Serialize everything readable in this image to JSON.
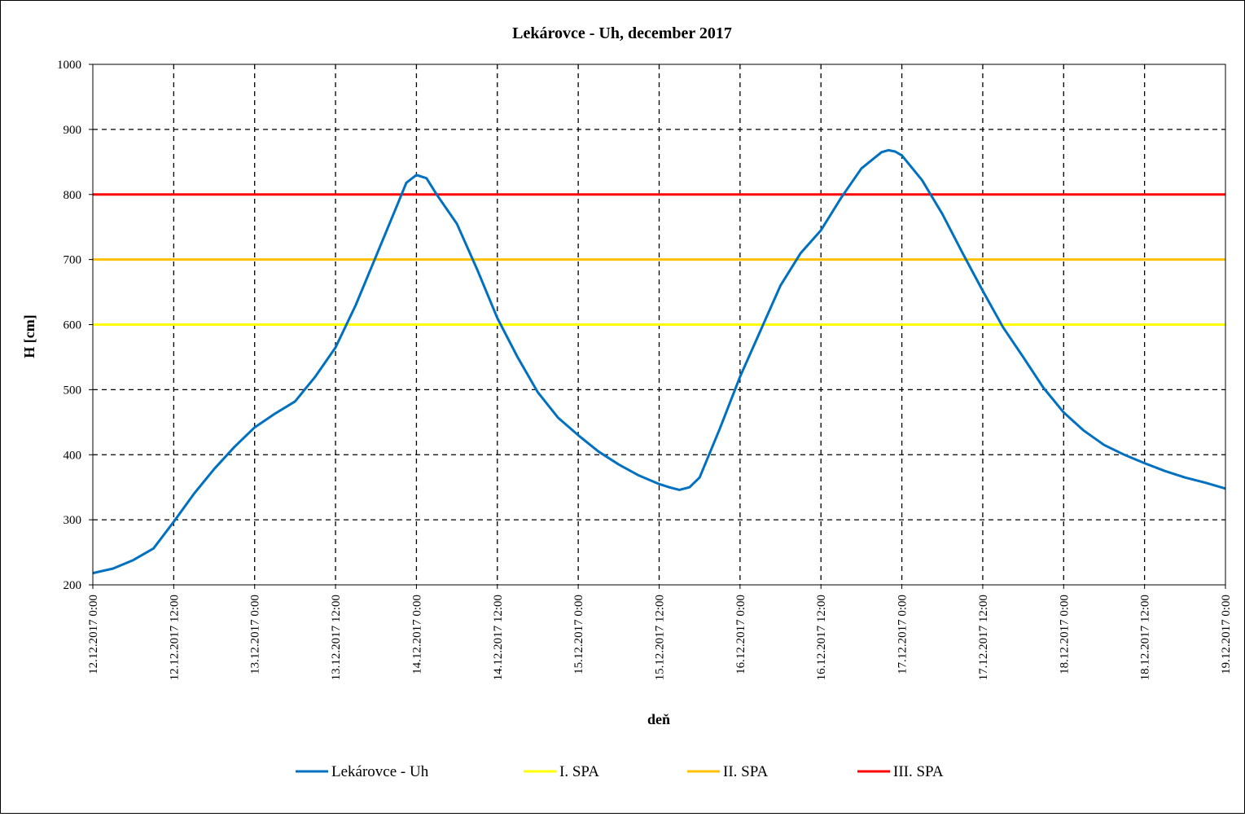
{
  "chart_data": {
    "type": "line",
    "title": "Lekárovce - Uh, december 2017",
    "xlabel": "deň",
    "ylabel": "H [cm]",
    "ylim": [
      200,
      1000
    ],
    "yticks": [
      "200",
      "300",
      "400",
      "500",
      "600",
      "700",
      "800",
      "900",
      "1000"
    ],
    "xlim": [
      "12.12.2017 0:00",
      "19.12.2017 0:00"
    ],
    "xticks": [
      "12.12.2017 0:00",
      "12.12.2017 12:00",
      "13.12.2017 0:00",
      "13.12.2017 12:00",
      "14.12.2017 0:00",
      "14.12.2017 12:00",
      "15.12.2017 0:00",
      "15.12.2017 12:00",
      "16.12.2017 0:00",
      "16.12.2017 12:00",
      "17.12.2017 0:00",
      "17.12.2017 12:00",
      "18.12.2017 0:00",
      "18.12.2017 12:00",
      "19.12.2017 0:00"
    ],
    "grid": true,
    "legend_position": "bottom",
    "series": [
      {
        "name": "Lekárovce - Uh",
        "color": "#0070c0",
        "points": [
          [
            "12.12.2017 0:00",
            218
          ],
          [
            "12.12.2017 3:00",
            225
          ],
          [
            "12.12.2017 6:00",
            238
          ],
          [
            "12.12.2017 9:00",
            256
          ],
          [
            "12.12.2017 12:00",
            297
          ],
          [
            "12.12.2017 15:00",
            340
          ],
          [
            "12.12.2017 18:00",
            378
          ],
          [
            "12.12.2017 21:00",
            412
          ],
          [
            "13.12.2017 0:00",
            442
          ],
          [
            "13.12.2017 3:00",
            463
          ],
          [
            "13.12.2017 6:00",
            482
          ],
          [
            "13.12.2017 9:00",
            520
          ],
          [
            "13.12.2017 12:00",
            565
          ],
          [
            "13.12.2017 15:00",
            630
          ],
          [
            "13.12.2017 18:00",
            705
          ],
          [
            "13.12.2017 21:00",
            780
          ],
          [
            "13.12.2017 22:30",
            818
          ],
          [
            "14.12.2017 0:00",
            830
          ],
          [
            "14.12.2017 1:30",
            825
          ],
          [
            "14.12.2017 3:00",
            800
          ],
          [
            "14.12.2017 6:00",
            755
          ],
          [
            "14.12.2017 9:00",
            685
          ],
          [
            "14.12.2017 12:00",
            610
          ],
          [
            "14.12.2017 15:00",
            550
          ],
          [
            "14.12.2017 18:00",
            496
          ],
          [
            "14.12.2017 21:00",
            457
          ],
          [
            "15.12.2017 0:00",
            430
          ],
          [
            "15.12.2017 3:00",
            405
          ],
          [
            "15.12.2017 6:00",
            385
          ],
          [
            "15.12.2017 9:00",
            368
          ],
          [
            "15.12.2017 12:00",
            355
          ],
          [
            "15.12.2017 13:30",
            350
          ],
          [
            "15.12.2017 15:00",
            346
          ],
          [
            "15.12.2017 16:30",
            350
          ],
          [
            "15.12.2017 18:00",
            365
          ],
          [
            "15.12.2017 21:00",
            440
          ],
          [
            "16.12.2017 0:00",
            520
          ],
          [
            "16.12.2017 3:00",
            590
          ],
          [
            "16.12.2017 6:00",
            660
          ],
          [
            "16.12.2017 9:00",
            710
          ],
          [
            "16.12.2017 12:00",
            745
          ],
          [
            "16.12.2017 15:00",
            795
          ],
          [
            "16.12.2017 18:00",
            840
          ],
          [
            "16.12.2017 21:00",
            865
          ],
          [
            "16.12.2017 22:00",
            868
          ],
          [
            "16.12.2017 23:00",
            866
          ],
          [
            "17.12.2017 0:00",
            860
          ],
          [
            "17.12.2017 3:00",
            822
          ],
          [
            "17.12.2017 6:00",
            770
          ],
          [
            "17.12.2017 9:00",
            710
          ],
          [
            "17.12.2017 12:00",
            652
          ],
          [
            "17.12.2017 15:00",
            596
          ],
          [
            "17.12.2017 18:00",
            550
          ],
          [
            "17.12.2017 21:00",
            503
          ],
          [
            "18.12.2017 0:00",
            465
          ],
          [
            "18.12.2017 3:00",
            437
          ],
          [
            "18.12.2017 6:00",
            415
          ],
          [
            "18.12.2017 9:00",
            400
          ],
          [
            "18.12.2017 12:00",
            387
          ],
          [
            "18.12.2017 15:00",
            375
          ],
          [
            "18.12.2017 18:00",
            365
          ],
          [
            "18.12.2017 21:00",
            357
          ],
          [
            "19.12.2017 0:00",
            348
          ]
        ]
      },
      {
        "name": "I. SPA",
        "color": "#ffff00",
        "constant": 600
      },
      {
        "name": "II. SPA",
        "color": "#ffc000",
        "constant": 700
      },
      {
        "name": "III. SPA",
        "color": "#ff0000",
        "constant": 800
      }
    ]
  }
}
